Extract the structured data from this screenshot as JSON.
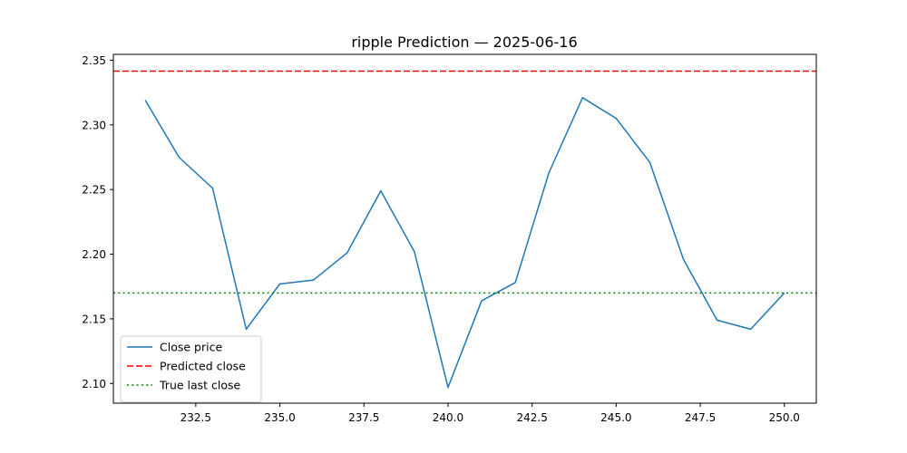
{
  "chart_data": {
    "type": "line",
    "title": "ripple Prediction — 2025-06-16",
    "xlabel": "",
    "ylabel": "",
    "xlim": [
      230.05,
      250.95
    ],
    "ylim": [
      2.0848,
      2.3545
    ],
    "xticks": [
      232.5,
      235.0,
      237.5,
      240.0,
      242.5,
      245.0,
      247.5,
      250.0
    ],
    "xtick_labels": [
      "232.5",
      "235.0",
      "237.5",
      "240.0",
      "242.5",
      "245.0",
      "247.5",
      "250.0"
    ],
    "yticks": [
      2.1,
      2.15,
      2.2,
      2.25,
      2.3,
      2.35
    ],
    "ytick_labels": [
      "2.10",
      "2.15",
      "2.20",
      "2.25",
      "2.30",
      "2.35"
    ],
    "grid": false,
    "legend_position": "lower-left",
    "series": [
      {
        "name": "Close price",
        "style": "solid",
        "color": "#1f77b4",
        "x": [
          231,
          232,
          233,
          234,
          235,
          236,
          237,
          238,
          239,
          240,
          241,
          242,
          243,
          244,
          245,
          246,
          247,
          248,
          249,
          250
        ],
        "y": [
          2.319,
          2.275,
          2.251,
          2.142,
          2.177,
          2.18,
          2.201,
          2.249,
          2.202,
          2.097,
          2.164,
          2.178,
          2.263,
          2.321,
          2.305,
          2.271,
          2.196,
          2.149,
          2.142,
          2.17
        ]
      },
      {
        "name": "Predicted close",
        "style": "dashed",
        "color": "#ff0000",
        "hline": 2.3415
      },
      {
        "name": "True last close",
        "style": "dotted",
        "color": "#008000",
        "hline": 2.17
      }
    ]
  }
}
